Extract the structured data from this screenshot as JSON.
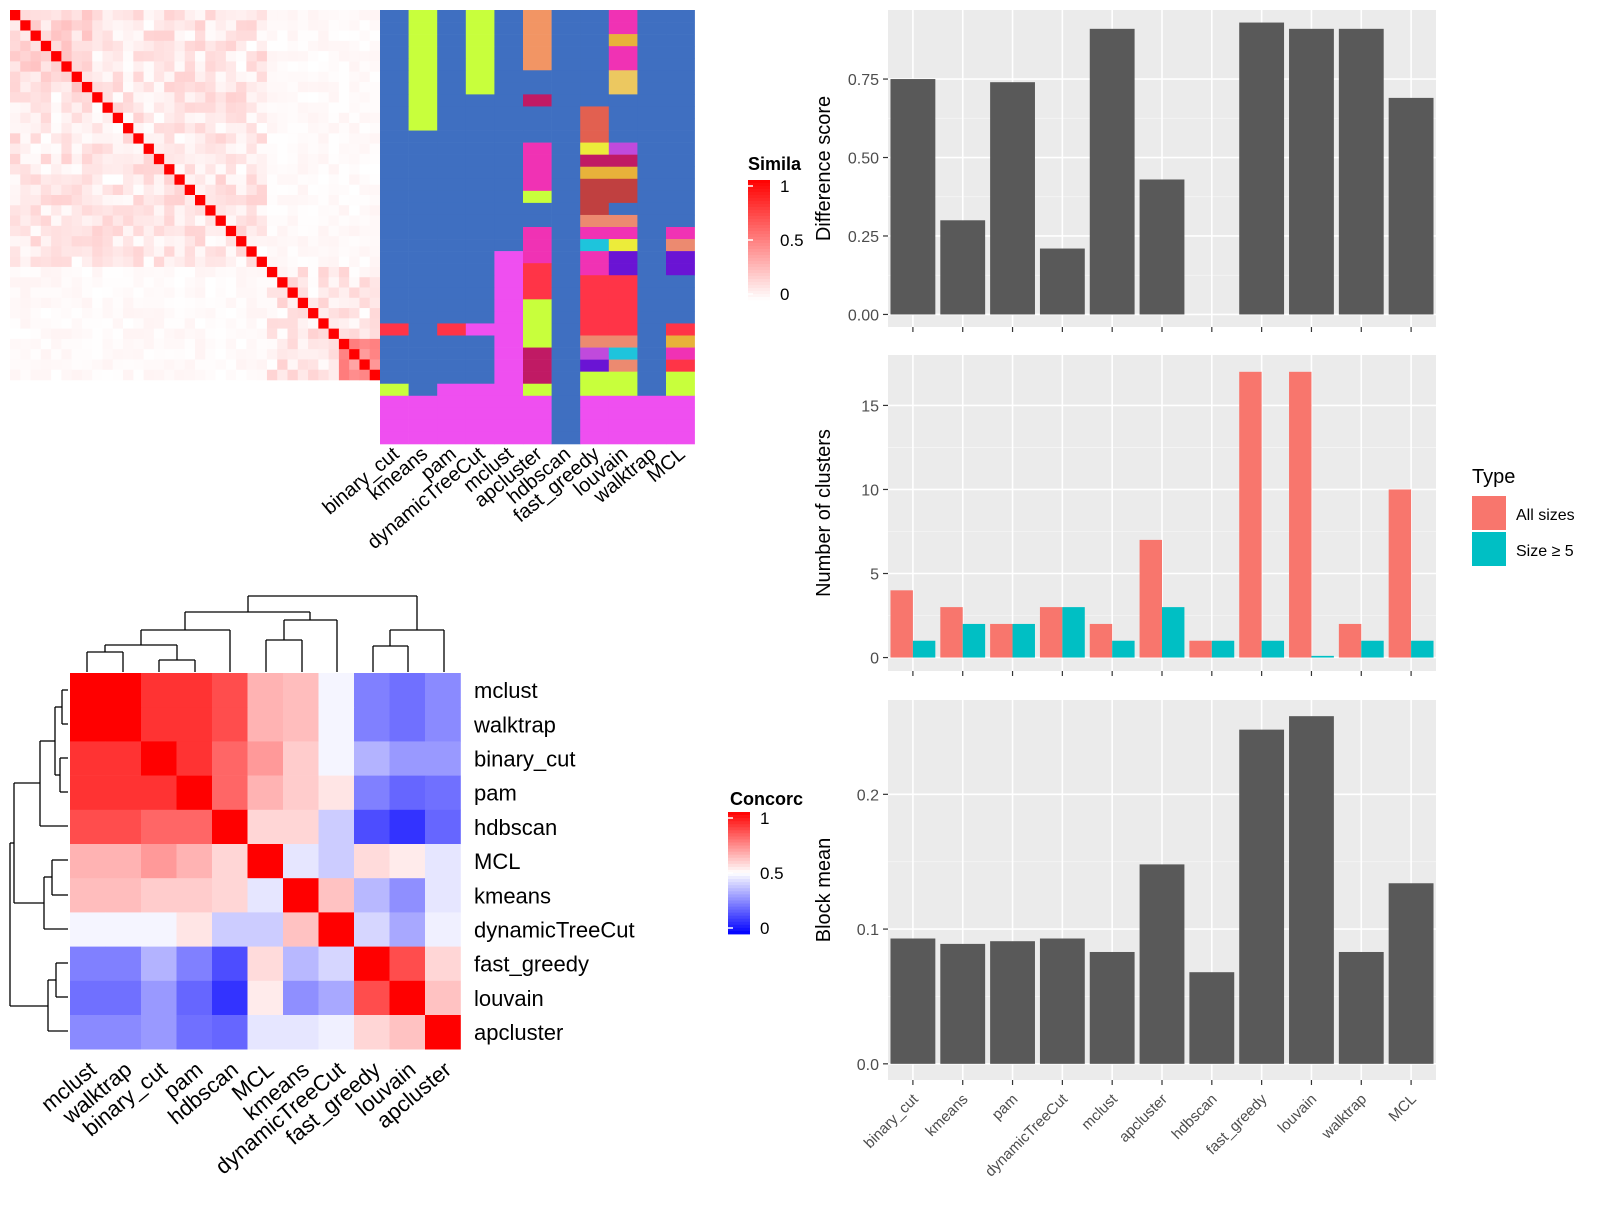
{
  "colors": {
    "panel_bg": "#ebebeb",
    "bar_dark": "#595959",
    "all_sizes": "#f8766d",
    "size_ge5": "#00bfc4",
    "heat_red": "#ff0000",
    "heat_blue": "#0000ff",
    "membership_blue": "#3f6fc1"
  },
  "chart_data": [
    {
      "type": "heatmap",
      "id": "similarity",
      "legend_title": "Simila",
      "legend_ticks": [
        "1",
        "0.5",
        "0"
      ],
      "n": 36,
      "color_range": [
        0,
        1
      ]
    },
    {
      "type": "heatmap",
      "id": "membership",
      "columns": [
        "binary_cut",
        "kmeans",
        "pam",
        "dynamicTreeCut",
        "mclust",
        "apcluster",
        "hdbscan",
        "fast_greedy",
        "louvain",
        "walktrap",
        "MCL"
      ],
      "n_rows": 36
    },
    {
      "type": "heatmap",
      "id": "concordance",
      "legend_title": "Concorc",
      "legend_ticks": [
        "1",
        "0.5",
        "0"
      ],
      "labels": [
        "mclust",
        "walktrap",
        "binary_cut",
        "pam",
        "hdbscan",
        "MCL",
        "kmeans",
        "dynamicTreeCut",
        "fast_greedy",
        "louvain",
        "apcluster"
      ],
      "values": [
        [
          1.0,
          1.0,
          0.9,
          0.9,
          0.85,
          0.65,
          0.63,
          0.48,
          0.25,
          0.22,
          0.27
        ],
        [
          1.0,
          1.0,
          0.9,
          0.9,
          0.85,
          0.65,
          0.63,
          0.48,
          0.25,
          0.22,
          0.27
        ],
        [
          0.9,
          0.9,
          1.0,
          0.9,
          0.8,
          0.7,
          0.6,
          0.48,
          0.35,
          0.3,
          0.3
        ],
        [
          0.9,
          0.9,
          0.9,
          1.0,
          0.8,
          0.65,
          0.6,
          0.55,
          0.25,
          0.2,
          0.22
        ],
        [
          0.85,
          0.85,
          0.8,
          0.8,
          1.0,
          0.58,
          0.58,
          0.4,
          0.15,
          0.1,
          0.2
        ],
        [
          0.65,
          0.65,
          0.7,
          0.65,
          0.58,
          1.0,
          0.45,
          0.4,
          0.57,
          0.54,
          0.45
        ],
        [
          0.63,
          0.63,
          0.6,
          0.6,
          0.58,
          0.45,
          1.0,
          0.62,
          0.36,
          0.28,
          0.45
        ],
        [
          0.48,
          0.48,
          0.48,
          0.55,
          0.4,
          0.4,
          0.62,
          1.0,
          0.42,
          0.33,
          0.47
        ],
        [
          0.25,
          0.25,
          0.35,
          0.25,
          0.15,
          0.57,
          0.36,
          0.42,
          1.0,
          0.85,
          0.58
        ],
        [
          0.22,
          0.22,
          0.3,
          0.2,
          0.1,
          0.54,
          0.28,
          0.33,
          0.85,
          1.0,
          0.62
        ],
        [
          0.27,
          0.27,
          0.3,
          0.22,
          0.2,
          0.45,
          0.45,
          0.47,
          0.58,
          0.62,
          1.0
        ]
      ]
    },
    {
      "type": "bar",
      "id": "difference",
      "ylabel": "Difference score",
      "categories": [
        "binary_cut",
        "kmeans",
        "pam",
        "dynamicTreeCut",
        "mclust",
        "apcluster",
        "hdbscan",
        "fast_greedy",
        "louvain",
        "walktrap",
        "MCL"
      ],
      "values": [
        0.75,
        0.3,
        0.74,
        0.21,
        0.91,
        0.43,
        0.0,
        0.93,
        0.91,
        0.91,
        0.69
      ],
      "ylim": [
        -0.04,
        0.97
      ],
      "yticks": [
        0.0,
        0.25,
        0.5,
        0.75
      ],
      "ytick_labels": [
        "0.00",
        "0.25",
        "0.50",
        "0.75"
      ]
    },
    {
      "type": "bar",
      "id": "nclusters",
      "ylabel": "Number of clusters",
      "categories": [
        "binary_cut",
        "kmeans",
        "pam",
        "dynamicTreeCut",
        "mclust",
        "apcluster",
        "hdbscan",
        "fast_greedy",
        "louvain",
        "walktrap",
        "MCL"
      ],
      "legend_title": "Type",
      "series": [
        {
          "name": "All sizes",
          "values": [
            4,
            3,
            2,
            3,
            2,
            7,
            1,
            17,
            17,
            2,
            10
          ]
        },
        {
          "name": "Size ≥ 5",
          "values": [
            1,
            2,
            2,
            3,
            1,
            3,
            1,
            1,
            0.1,
            1,
            1
          ]
        }
      ],
      "ylim": [
        -0.8,
        18
      ],
      "yticks": [
        0,
        5,
        10,
        15
      ],
      "ytick_labels": [
        "0",
        "5",
        "10",
        "15"
      ]
    },
    {
      "type": "bar",
      "id": "blockmean",
      "ylabel": "Block mean",
      "categories": [
        "binary_cut",
        "kmeans",
        "pam",
        "dynamicTreeCut",
        "mclust",
        "apcluster",
        "hdbscan",
        "fast_greedy",
        "louvain",
        "walktrap",
        "MCL"
      ],
      "values": [
        0.093,
        0.089,
        0.091,
        0.093,
        0.083,
        0.148,
        0.068,
        0.248,
        0.258,
        0.083,
        0.134
      ],
      "ylim": [
        -0.012,
        0.27
      ],
      "yticks": [
        0.0,
        0.1,
        0.2
      ],
      "ytick_labels": [
        "0.0",
        "0.1",
        "0.2"
      ]
    }
  ]
}
